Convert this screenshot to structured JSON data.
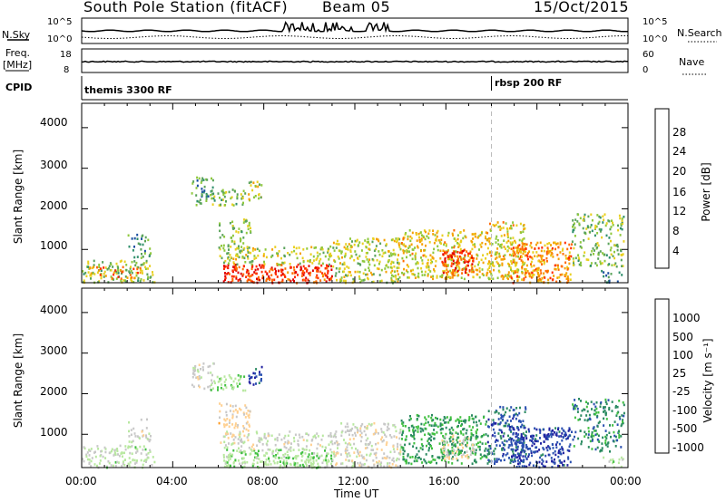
{
  "header": {
    "station": "South Pole Station (fitACF)",
    "beam": "Beam 05",
    "date": "15/Oct/2015"
  },
  "noise_panel": {
    "left_label": "N.Sky",
    "right_label": "N.Search",
    "left_ticks": [
      "10^5",
      "10^0"
    ],
    "right_ticks": [
      "10^5",
      "10^0"
    ]
  },
  "freq_panel": {
    "left_label_line1": "Freq.",
    "left_label_line2": "[MHz]",
    "right_label": "Nave",
    "left_ticks": [
      "18",
      "8"
    ],
    "right_ticks": [
      "60",
      "0"
    ]
  },
  "cpid_panel": {
    "label": "CPID",
    "segments": [
      {
        "label": "themis 3300 RF",
        "start_hour": 0
      },
      {
        "label": "rbsp 200 RF",
        "start_hour": 18
      }
    ]
  },
  "axes": {
    "x_label": "Time UT",
    "x_ticks": [
      "00:00",
      "04:00",
      "08:00",
      "12:00",
      "16:00",
      "20:00",
      "00:00"
    ],
    "y_label": "Slant Range [km]",
    "y_ticks": [
      "4000",
      "3000",
      "2000",
      "1000"
    ]
  },
  "power_colorbar": {
    "label": "Power [dB]",
    "ticks": [
      "28",
      "24",
      "20",
      "16",
      "12",
      "8",
      "4"
    ]
  },
  "velocity_colorbar": {
    "label": "Velocity [m s⁻¹]",
    "ticks": [
      "1000",
      "500",
      "100",
      "25",
      "-25",
      "-100",
      "-500",
      "-1000"
    ]
  },
  "colors": {
    "power_scale": [
      "#0000ee",
      "#1a4fa0",
      "#2f8f6b",
      "#5aa35a",
      "#8ec83c",
      "#e8d020",
      "#f5a000",
      "#ff6a00",
      "#ff2a00",
      "#e00000"
    ],
    "velocity_scale": [
      "#ee0000",
      "#ff5a00",
      "#ff9a20",
      "#ffd090",
      "#c8c8c8",
      "#b8e8a0",
      "#40c040",
      "#2a8a60",
      "#2a50b0",
      "#2020a0"
    ]
  },
  "chart_data": {
    "type": "heatmap",
    "x_range_hours": [
      0,
      24
    ],
    "y_range_km": [
      180,
      4600
    ],
    "power_db_range": [
      0,
      32
    ],
    "velocity_range": [
      -1200,
      1200
    ],
    "marker_hour": 18,
    "power_regions": [
      {
        "h0": 0.0,
        "h1": 3.2,
        "r0": 200,
        "r1": 750,
        "v": 14,
        "d": 0.55
      },
      {
        "h0": 0.3,
        "h1": 2.8,
        "r0": 300,
        "r1": 600,
        "v": 24,
        "d": 0.35
      },
      {
        "h0": 2.0,
        "h1": 3.0,
        "r0": 800,
        "r1": 1400,
        "v": 10,
        "d": 0.4
      },
      {
        "h0": 4.8,
        "h1": 5.8,
        "r0": 2100,
        "r1": 2800,
        "v": 10,
        "d": 0.5
      },
      {
        "h0": 5.6,
        "h1": 7.2,
        "r0": 2100,
        "r1": 2500,
        "v": 14,
        "d": 0.55
      },
      {
        "h0": 7.3,
        "h1": 7.9,
        "r0": 2200,
        "r1": 2700,
        "v": 16,
        "d": 0.6
      },
      {
        "h0": 6.0,
        "h1": 7.4,
        "r0": 800,
        "r1": 1800,
        "v": 14,
        "d": 0.45
      },
      {
        "h0": 6.2,
        "h1": 11.0,
        "r0": 200,
        "r1": 650,
        "v": 27,
        "d": 0.85
      },
      {
        "h0": 6.2,
        "h1": 11.0,
        "r0": 650,
        "r1": 1100,
        "v": 15,
        "d": 0.45
      },
      {
        "h0": 11.0,
        "h1": 14.0,
        "r0": 200,
        "r1": 1300,
        "v": 16,
        "d": 0.55
      },
      {
        "h0": 14.0,
        "h1": 17.8,
        "r0": 300,
        "r1": 1500,
        "v": 18,
        "d": 0.6
      },
      {
        "h0": 15.8,
        "h1": 17.2,
        "r0": 400,
        "r1": 1000,
        "v": 27,
        "d": 0.75
      },
      {
        "h0": 17.8,
        "h1": 19.5,
        "r0": 300,
        "r1": 1700,
        "v": 18,
        "d": 0.65
      },
      {
        "h0": 18.8,
        "h1": 21.5,
        "r0": 200,
        "r1": 1200,
        "v": 22,
        "d": 0.7
      },
      {
        "h0": 21.5,
        "h1": 23.8,
        "r0": 600,
        "r1": 1900,
        "v": 13,
        "d": 0.45
      },
      {
        "h0": 22.8,
        "h1": 23.8,
        "r0": 200,
        "r1": 500,
        "v": 8,
        "d": 0.4
      }
    ],
    "velocity_regions": [
      {
        "h0": 0.0,
        "h1": 3.2,
        "r0": 200,
        "r1": 750,
        "v": 60,
        "d": 0.55
      },
      {
        "h0": 2.0,
        "h1": 3.0,
        "r0": 800,
        "r1": 1400,
        "v": -60,
        "d": 0.4
      },
      {
        "h0": 4.8,
        "h1": 5.8,
        "r0": 2100,
        "r1": 2800,
        "v": -80,
        "d": 0.5
      },
      {
        "h0": 5.6,
        "h1": 7.2,
        "r0": 2100,
        "r1": 2500,
        "v": 200,
        "d": 0.55
      },
      {
        "h0": 7.3,
        "h1": 7.9,
        "r0": 2200,
        "r1": 2700,
        "v": 900,
        "d": 0.6
      },
      {
        "h0": 6.0,
        "h1": 7.4,
        "r0": 800,
        "r1": 1800,
        "v": -300,
        "d": 0.45
      },
      {
        "h0": 6.2,
        "h1": 11.0,
        "r0": 200,
        "r1": 650,
        "v": 150,
        "d": 0.85
      },
      {
        "h0": 6.2,
        "h1": 11.0,
        "r0": 650,
        "r1": 1100,
        "v": -60,
        "d": 0.45
      },
      {
        "h0": 11.0,
        "h1": 14.0,
        "r0": 200,
        "r1": 1300,
        "v": -120,
        "d": 0.55
      },
      {
        "h0": 14.0,
        "h1": 17.8,
        "r0": 300,
        "r1": 1500,
        "v": 500,
        "d": 0.6
      },
      {
        "h0": 15.8,
        "h1": 17.2,
        "r0": 400,
        "r1": 1000,
        "v": -200,
        "d": 0.5
      },
      {
        "h0": 17.8,
        "h1": 19.5,
        "r0": 300,
        "r1": 1700,
        "v": 800,
        "d": 0.65
      },
      {
        "h0": 18.8,
        "h1": 21.5,
        "r0": 200,
        "r1": 1200,
        "v": 900,
        "d": 0.7
      },
      {
        "h0": 21.5,
        "h1": 23.8,
        "r0": 600,
        "r1": 1900,
        "v": 600,
        "d": 0.45
      },
      {
        "h0": 22.8,
        "h1": 23.8,
        "r0": 200,
        "r1": 500,
        "v": 80,
        "d": 0.4
      }
    ]
  }
}
